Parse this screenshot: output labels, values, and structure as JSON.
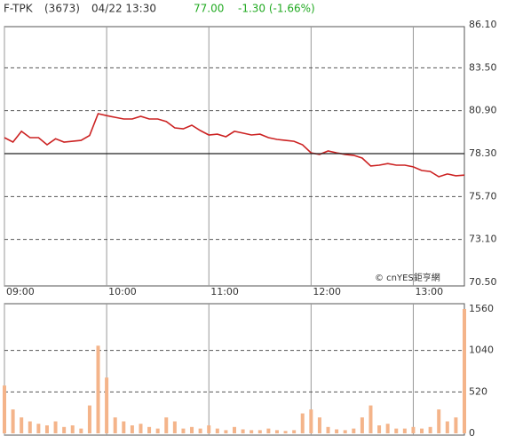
{
  "header": {
    "symbol": "F-TPK",
    "code": "(3673)",
    "datetime": "04/22 13:30",
    "price": "77.00",
    "change": "-1.30 (-1.66%)",
    "change_color": "#22aa22"
  },
  "watermark": "© cnYES鉅亨網",
  "chart_data": [
    {
      "type": "line",
      "color": "#cc2222",
      "x": [
        "09:00",
        "09:05",
        "09:10",
        "09:15",
        "09:20",
        "09:25",
        "09:30",
        "09:35",
        "09:40",
        "09:45",
        "09:50",
        "09:55",
        "10:00",
        "10:05",
        "10:10",
        "10:15",
        "10:20",
        "10:25",
        "10:30",
        "10:35",
        "10:40",
        "10:45",
        "10:50",
        "10:55",
        "11:00",
        "11:05",
        "11:10",
        "11:15",
        "11:20",
        "11:25",
        "11:30",
        "11:35",
        "11:40",
        "11:45",
        "11:50",
        "11:55",
        "12:00",
        "12:05",
        "12:10",
        "12:15",
        "12:20",
        "12:25",
        "12:30",
        "12:35",
        "12:40",
        "12:45",
        "12:50",
        "12:55",
        "13:00",
        "13:05",
        "13:10",
        "13:15",
        "13:20",
        "13:25",
        "13:30"
      ],
      "values": [
        79.27,
        79.0,
        79.65,
        79.27,
        79.27,
        78.84,
        79.2,
        79.0,
        79.05,
        79.1,
        79.4,
        80.72,
        80.6,
        80.5,
        80.4,
        80.4,
        80.56,
        80.4,
        80.4,
        80.24,
        79.86,
        79.8,
        80.02,
        79.7,
        79.43,
        79.48,
        79.32,
        79.65,
        79.54,
        79.43,
        79.48,
        79.27,
        79.16,
        79.1,
        79.05,
        78.84,
        78.35,
        78.25,
        78.46,
        78.35,
        78.25,
        78.2,
        78.03,
        77.55,
        77.6,
        77.7,
        77.6,
        77.6,
        77.5,
        77.28,
        77.22,
        76.9,
        77.07,
        76.96,
        77.0
      ],
      "xlim": [
        "09:00",
        "13:30"
      ],
      "xticks": [
        "09:00",
        "10:00",
        "11:00",
        "12:00",
        "13:00"
      ],
      "ylim": [
        70.5,
        86.1
      ],
      "reference_line": 78.3,
      "yticks": [
        {
          "value": 70.5,
          "label": "70.50"
        },
        {
          "value": 73.1,
          "label": "73.10"
        },
        {
          "value": 75.7,
          "label": "75.70"
        },
        {
          "value": 78.3,
          "label": "78.30"
        },
        {
          "value": 80.9,
          "label": "80.90"
        },
        {
          "value": 83.5,
          "label": "83.50"
        },
        {
          "value": 86.1,
          "label": "86.10"
        }
      ],
      "grid": true
    },
    {
      "type": "bar",
      "color": "#f4b48a",
      "x": [
        "09:00",
        "09:05",
        "09:10",
        "09:15",
        "09:20",
        "09:25",
        "09:30",
        "09:35",
        "09:40",
        "09:45",
        "09:50",
        "09:55",
        "10:00",
        "10:05",
        "10:10",
        "10:15",
        "10:20",
        "10:25",
        "10:30",
        "10:35",
        "10:40",
        "10:45",
        "10:50",
        "10:55",
        "11:00",
        "11:05",
        "11:10",
        "11:15",
        "11:20",
        "11:25",
        "11:30",
        "11:35",
        "11:40",
        "11:45",
        "11:50",
        "11:55",
        "12:00",
        "12:05",
        "12:10",
        "12:15",
        "12:20",
        "12:25",
        "12:30",
        "12:35",
        "12:40",
        "12:45",
        "12:50",
        "12:55",
        "13:00",
        "13:05",
        "13:10",
        "13:15",
        "13:20",
        "13:25",
        "13:30"
      ],
      "values": [
        600,
        300,
        200,
        150,
        120,
        100,
        150,
        80,
        100,
        60,
        350,
        1100,
        700,
        200,
        150,
        100,
        120,
        80,
        60,
        200,
        150,
        60,
        80,
        60,
        100,
        60,
        40,
        80,
        50,
        40,
        40,
        60,
        40,
        30,
        40,
        250,
        300,
        200,
        80,
        50,
        40,
        60,
        200,
        350,
        100,
        120,
        60,
        60,
        80,
        60,
        80,
        300,
        150,
        200,
        1560
      ],
      "xlim": [
        "09:00",
        "13:30"
      ],
      "ylim": [
        0,
        1560
      ],
      "yticks": [
        0,
        520,
        1040,
        1560
      ],
      "grid": true
    }
  ]
}
